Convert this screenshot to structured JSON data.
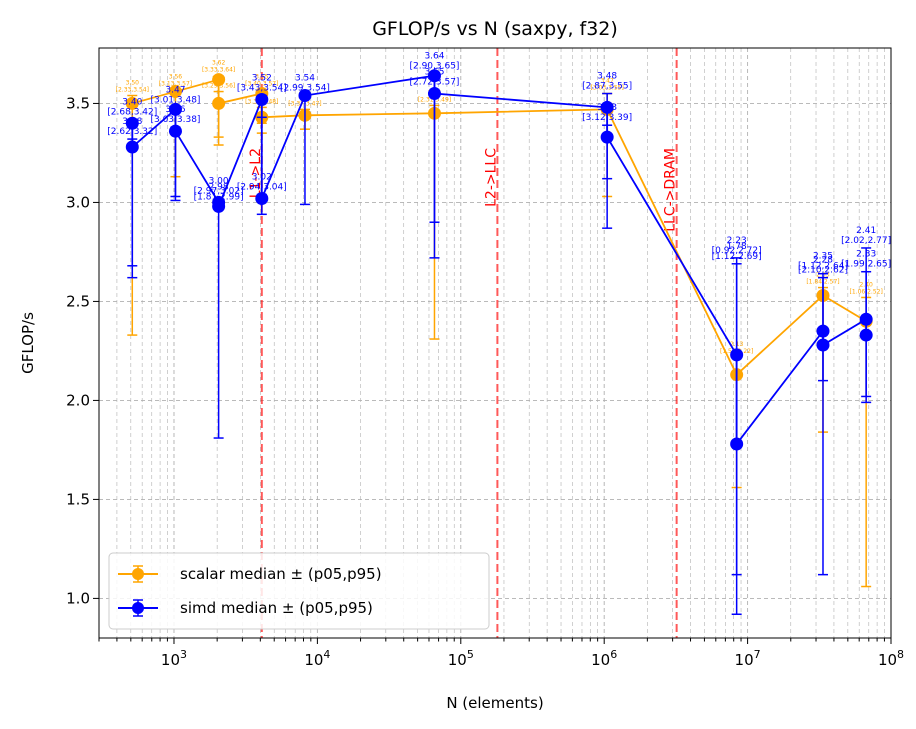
{
  "chart_data": {
    "type": "line",
    "title": "GFLOP/s vs N (saxpy, f32)",
    "xlabel": "N (elements)",
    "ylabel": "GFLOP/s",
    "xscale": "log",
    "xlim": [
      300,
      100000000
    ],
    "ylim": [
      0.8,
      3.78
    ],
    "yticks": [
      "1.0",
      "1.5",
      "2.0",
      "2.5",
      "3.0",
      "3.5"
    ],
    "xticks": [
      {
        "base": "10",
        "exp": "3"
      },
      {
        "base": "10",
        "exp": "4"
      },
      {
        "base": "10",
        "exp": "5"
      },
      {
        "base": "10",
        "exp": "6"
      },
      {
        "base": "10",
        "exp": "7"
      },
      {
        "base": "10",
        "exp": "8"
      }
    ],
    "grid": true,
    "legend_position": "lower-left",
    "vlines": [
      {
        "x": 4096,
        "label": "L1->L2"
      },
      {
        "x": 180000,
        "label": "L2->LLC"
      },
      {
        "x": 3200000,
        "label": "LLC->DRAM"
      }
    ],
    "series": [
      {
        "name": "scalar median ± (p05,p95)",
        "color": "#ffa500",
        "points": [
          {
            "x": 512,
            "y": 3.5,
            "lo": 2.33,
            "hi": 3.54,
            "label": "3.50",
            "ci": "[2.33,3.54]"
          },
          {
            "x": 1024,
            "y": 3.56,
            "lo": 3.13,
            "hi": 3.57,
            "label": "3.56",
            "ci": "[3.13,3.57]"
          },
          {
            "x": 2048,
            "y": 3.62,
            "lo": 3.33,
            "hi": 3.64,
            "label": "3.62",
            "ci": "[3.33,3.64]"
          },
          {
            "x": 2048,
            "y": 3.5,
            "lo": 3.29,
            "hi": 3.56,
            "label": "3.50",
            "ci": "[3.29,3.56]"
          },
          {
            "x": 4096,
            "y": 3.55,
            "lo": 3.4,
            "hi": 3.57,
            "label": "3.55",
            "ci": "[3.40,3.57]"
          },
          {
            "x": 4096,
            "y": 3.43,
            "lo": 3.35,
            "hi": 3.48,
            "label": "3.43",
            "ci": "[3.35,3.48]"
          },
          {
            "x": 8192,
            "y": 3.44,
            "lo": 3.37,
            "hi": 3.47,
            "label": "3.44",
            "ci": "[3.37,3.47]"
          },
          {
            "x": 65536,
            "y": 3.45,
            "lo": 2.31,
            "hi": 3.49,
            "label": "3.45",
            "ci": "[2.31,3.49]"
          },
          {
            "x": 1048576,
            "y": 3.47,
            "lo": 3.03,
            "hi": 3.55,
            "label": "3.47",
            "ci": "[3.03,3.55]"
          },
          {
            "x": 8388608,
            "y": 2.13,
            "lo": 1.56,
            "hi": 2.22,
            "label": "2.13",
            "ci": "[1.56,2.22]"
          },
          {
            "x": 33554432,
            "y": 2.53,
            "lo": 1.84,
            "hi": 2.57,
            "label": "2.53",
            "ci": "[1.84,2.57]"
          },
          {
            "x": 67108864,
            "y": 2.4,
            "lo": 1.06,
            "hi": 2.52,
            "label": "2.40",
            "ci": "[1.06,2.52]"
          }
        ]
      },
      {
        "name": "simd median ± (p05,p95)",
        "color": "#0000ff",
        "points": [
          {
            "x": 512,
            "y": 3.4,
            "lo": 2.68,
            "hi": 3.42,
            "label": "3.40",
            "ci": "[2.68,3.42]"
          },
          {
            "x": 512,
            "y": 3.28,
            "lo": 2.62,
            "hi": 3.32,
            "label": "3.28",
            "ci": "[2.62,3.32]"
          },
          {
            "x": 1024,
            "y": 3.47,
            "lo": 3.01,
            "hi": 3.48,
            "label": "3.47",
            "ci": "[3.01,3.48]"
          },
          {
            "x": 1024,
            "y": 3.36,
            "lo": 3.03,
            "hi": 3.38,
            "label": "3.36",
            "ci": "[3.03,3.38]"
          },
          {
            "x": 2048,
            "y": 3.0,
            "lo": 2.97,
            "hi": 3.02,
            "label": "3.00",
            "ci": "[2.97,3.02]"
          },
          {
            "x": 2048,
            "y": 2.98,
            "lo": 1.81,
            "hi": 2.99,
            "label": "2.98",
            "ci": "[1.81,2.99]"
          },
          {
            "x": 4096,
            "y": 3.52,
            "lo": 3.43,
            "hi": 3.54,
            "label": "3.52",
            "ci": "[3.43,3.54]"
          },
          {
            "x": 4096,
            "y": 3.02,
            "lo": 2.94,
            "hi": 3.04,
            "label": "3.02",
            "ci": "[2.94,3.04]"
          },
          {
            "x": 8192,
            "y": 3.54,
            "lo": 2.99,
            "hi": 3.54,
            "label": "3.54",
            "ci": "[2.99,3.54]"
          },
          {
            "x": 65536,
            "y": 3.64,
            "lo": 2.9,
            "hi": 3.65,
            "label": "3.64",
            "ci": "[2.90,3.65]"
          },
          {
            "x": 65536,
            "y": 3.55,
            "lo": 2.72,
            "hi": 3.57,
            "label": "3.55",
            "ci": "[2.72,3.57]"
          },
          {
            "x": 1048576,
            "y": 3.48,
            "lo": 2.87,
            "hi": 3.55,
            "label": "3.48",
            "ci": "[2.87,3.55]"
          },
          {
            "x": 1048576,
            "y": 3.33,
            "lo": 3.12,
            "hi": 3.39,
            "label": "3.33",
            "ci": "[3.12,3.39]"
          },
          {
            "x": 8388608,
            "y": 2.23,
            "lo": 0.92,
            "hi": 2.72,
            "label": "2.23",
            "ci": "[0.92,2.72]"
          },
          {
            "x": 8388608,
            "y": 1.78,
            "lo": 1.12,
            "hi": 2.69,
            "label": "1.78",
            "ci": "[1.12,2.69]"
          },
          {
            "x": 33554432,
            "y": 2.35,
            "lo": 1.12,
            "hi": 2.64,
            "label": "2.35",
            "ci": "[1.12,2.64]"
          },
          {
            "x": 33554432,
            "y": 2.28,
            "lo": 2.1,
            "hi": 2.62,
            "label": "2.28",
            "ci": "[2.10,2.62]"
          },
          {
            "x": 67108864,
            "y": 2.41,
            "lo": 2.02,
            "hi": 2.77,
            "label": "2.41",
            "ci": "[2.02,2.77]"
          },
          {
            "x": 67108864,
            "y": 2.33,
            "lo": 1.99,
            "hi": 2.65,
            "label": "2.33",
            "ci": "[1.99,2.65]"
          }
        ]
      }
    ]
  }
}
